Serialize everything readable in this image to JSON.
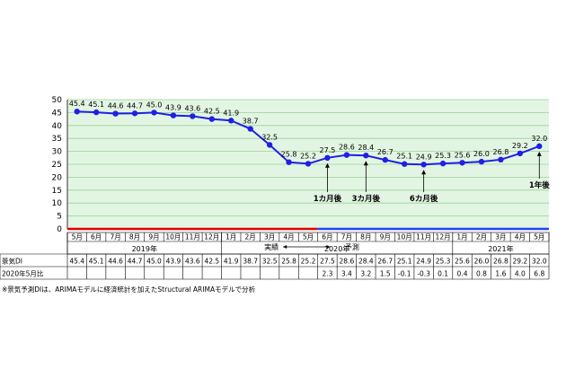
{
  "chart_data": {
    "type": "line",
    "y_ticks": [
      "0",
      "5",
      "10",
      "15",
      "20",
      "25",
      "30",
      "35",
      "40",
      "45",
      "50"
    ],
    "ylim": [
      0,
      50
    ],
    "grid": true,
    "categories": [
      "5月",
      "6月",
      "7月",
      "8月",
      "9月",
      "10月",
      "11月",
      "12月",
      "1月",
      "2月",
      "3月",
      "4月",
      "5月",
      "6月",
      "7月",
      "8月",
      "9月",
      "10月",
      "11月",
      "12月",
      "1月",
      "2月",
      "3月",
      "4月",
      "5月"
    ],
    "values": [
      45.4,
      45.1,
      44.6,
      44.7,
      45.0,
      43.9,
      43.6,
      42.5,
      41.9,
      38.7,
      32.5,
      25.8,
      25.2,
      27.5,
      28.6,
      28.4,
      26.7,
      25.1,
      24.9,
      25.3,
      25.6,
      26.0,
      26.8,
      29.2,
      32.0
    ],
    "value_labels": [
      "45.4",
      "45.1",
      "44.6",
      "44.7",
      "45.0",
      "43.9",
      "43.6",
      "42.5",
      "41.9",
      "38.7",
      "32.5",
      "25.8",
      "25.2",
      "27.5",
      "28.6",
      "28.4",
      "26.7",
      "25.1",
      "24.9",
      "25.3",
      "25.6",
      "26.0",
      "26.8",
      "29.2",
      "32.0"
    ],
    "years": [
      {
        "label": "2019年",
        "start": 0,
        "end": 7
      },
      {
        "label": "2020年",
        "start": 8,
        "end": 19
      },
      {
        "label": "2021年",
        "start": 20,
        "end": 24
      }
    ],
    "actual_label": "実績",
    "forecast_label": "予測",
    "annotations": [
      {
        "label": "1カ月後",
        "index": 13
      },
      {
        "label": "3カ月後",
        "index": 15
      },
      {
        "label": "6カ月後",
        "index": 18
      },
      {
        "label": "1年後",
        "index": 24
      }
    ],
    "table": {
      "row1_label": "景気DI",
      "row1_values": [
        "45.4",
        "45.1",
        "44.6",
        "44.7",
        "45.0",
        "43.9",
        "43.6",
        "42.5",
        "41.9",
        "38.7",
        "32.5",
        "25.8",
        "25.2",
        "27.5",
        "28.6",
        "28.4",
        "26.7",
        "25.1",
        "24.9",
        "25.3",
        "25.6",
        "26.0",
        "26.8",
        "29.2",
        "32.0"
      ],
      "row2_label": "2020年5月比",
      "row2_values": [
        "",
        "",
        "",
        "",
        "",
        "",
        "",
        "",
        "",
        "",
        "",
        "",
        "",
        "2.3",
        "3.4",
        "3.2",
        "1.5",
        "-0.1",
        "-0.3",
        "0.1",
        "0.4",
        "0.8",
        "1.6",
        "4.0",
        "6.8"
      ]
    },
    "note": "※景気予測DIは、ARIMAモデルに経済統計を加えたStructural ARIMAモデルで分析",
    "colors": {
      "line": "#1f1fe6",
      "marker": "#1f1fe6",
      "plot_bg": "#e2f5e2",
      "grid": "#9bd09b",
      "axis_red": "#e00000",
      "axis_blue": "#2040ff"
    }
  }
}
